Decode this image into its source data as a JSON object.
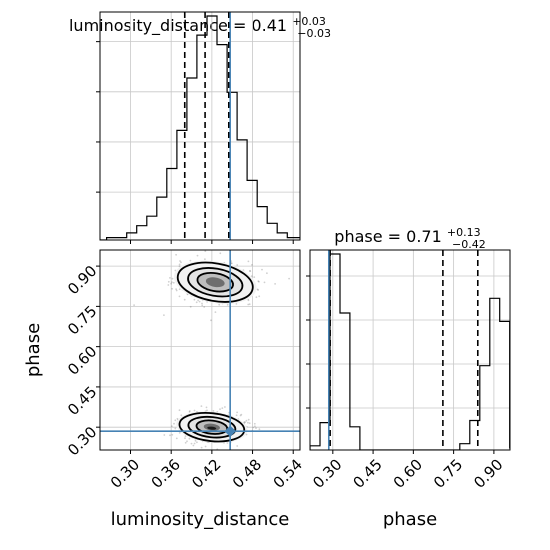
{
  "chart_data": {
    "type": "corner",
    "parameters": [
      "luminosity_distance",
      "phase"
    ],
    "truths": {
      "luminosity_distance": 0.447,
      "phase": 0.285
    },
    "truth_color": "#4682b4",
    "grid": true,
    "panels": [
      {
        "id": "hist-luminosity-distance",
        "type": "histogram",
        "title": {
          "text": "luminosity_distance = 0.41",
          "sup": "+0.03",
          "sub": "−0.03"
        },
        "xlim": [
          0.255,
          0.55
        ],
        "quantile_lines": [
          0.38,
          0.41,
          0.445
        ],
        "bins": {
          "start": 0.25,
          "width": 0.0148,
          "heights": [
            0,
            1,
            1,
            3,
            6,
            10,
            18,
            30,
            46,
            68,
            86,
            94,
            82,
            62,
            42,
            25,
            14,
            7,
            3,
            1,
            1,
            0
          ]
        }
      },
      {
        "id": "scatter-contour",
        "type": "contour",
        "xlim": [
          0.255,
          0.55
        ],
        "ylim": [
          0.215,
          0.96
        ],
        "xticks": [
          0.3,
          0.36,
          0.42,
          0.48,
          0.54
        ],
        "xtick_labels": [
          "0.30",
          "0.36",
          "0.42",
          "0.48",
          "0.54"
        ],
        "yticks": [
          0.3,
          0.45,
          0.6,
          0.75,
          0.9
        ],
        "ytick_labels": [
          "0.30",
          "0.45",
          "0.60",
          "0.75",
          "0.90"
        ],
        "xlabel": "luminosity_distance",
        "ylabel": "phase",
        "modes": [
          {
            "x": 0.425,
            "y": 0.84,
            "sx": 0.028,
            "sy": 0.035
          },
          {
            "x": 0.42,
            "y": 0.3,
            "sx": 0.024,
            "sy": 0.026
          }
        ]
      },
      {
        "id": "hist-phase",
        "type": "histogram",
        "title": {
          "text": "phase = 0.71",
          "sup": "+0.13",
          "sub": "−0.42"
        },
        "xlim": [
          0.215,
          0.96
        ],
        "quantile_lines": [
          0.29,
          0.71,
          0.84
        ],
        "xticks": [
          0.3,
          0.45,
          0.6,
          0.75,
          0.9
        ],
        "xtick_labels": [
          "0.30",
          "0.45",
          "0.60",
          "0.75",
          "0.90"
        ],
        "xlabel": "phase",
        "bins": {
          "start": 0.215,
          "width": 0.0372,
          "heights": [
            2,
            13,
            93,
            65,
            11,
            0,
            0,
            0,
            0,
            0,
            0,
            0,
            0,
            0,
            0,
            3,
            14,
            40,
            72,
            61,
            1
          ]
        }
      }
    ]
  }
}
